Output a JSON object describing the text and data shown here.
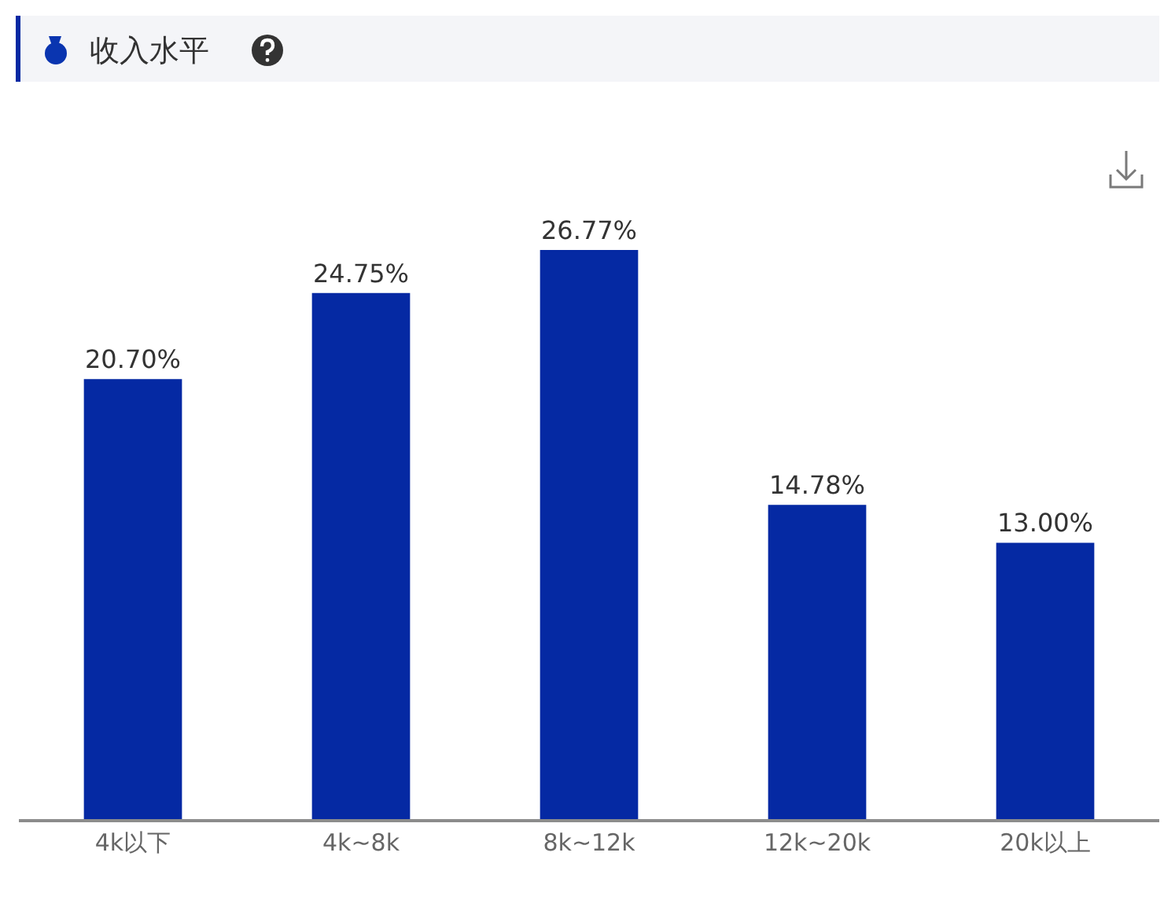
{
  "chart_data": {
    "type": "bar",
    "title": "收入水平",
    "categories": [
      "4k以下",
      "4k~8k",
      "8k~12k",
      "12k~20k",
      "20k以上"
    ],
    "values": [
      20.7,
      24.75,
      26.77,
      14.78,
      13.0
    ],
    "color": "#0529a3",
    "value_labels": [
      "20.70%",
      "24.75%",
      "26.77%",
      "14.78%",
      "13.00%"
    ],
    "tick_labels": "x"
  }
}
